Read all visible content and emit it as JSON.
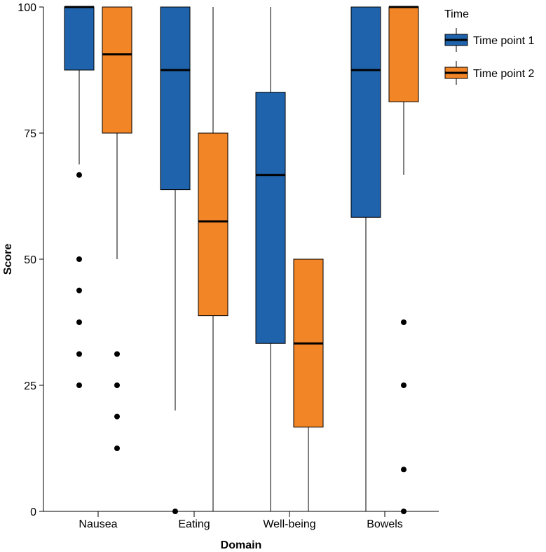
{
  "chart_data": {
    "type": "boxplot",
    "title": "",
    "xlabel": "Domain",
    "ylabel": "Score",
    "ylim": [
      0,
      100
    ],
    "yticks": [
      0,
      25,
      50,
      75,
      100
    ],
    "categories": [
      "Nausea",
      "Eating",
      "Well-being",
      "Bowels"
    ],
    "legend": {
      "title": "Time",
      "position": "top-right",
      "entries": [
        "Time point 1",
        "Time point 2"
      ]
    },
    "series": [
      {
        "name": "Time point 1",
        "color": "#1f63ad",
        "boxes": [
          {
            "category": "Nausea",
            "whisker_low": 68.8,
            "q1": 87.5,
            "median": 100,
            "q3": 100,
            "whisker_high": 100,
            "outliers": [
              66.7,
              50,
              43.8,
              37.5,
              31.2,
              25
            ]
          },
          {
            "category": "Eating",
            "whisker_low": 20,
            "q1": 63.8,
            "median": 87.5,
            "q3": 100,
            "whisker_high": 100,
            "outliers": [
              0
            ]
          },
          {
            "category": "Well-being",
            "whisker_low": 0,
            "q1": 33.3,
            "median": 66.7,
            "q3": 83.1,
            "whisker_high": 100,
            "outliers": []
          },
          {
            "category": "Bowels",
            "whisker_low": 0,
            "q1": 58.3,
            "median": 87.5,
            "q3": 100,
            "whisker_high": 100,
            "outliers": []
          }
        ]
      },
      {
        "name": "Time point 2",
        "color": "#f28526",
        "boxes": [
          {
            "category": "Nausea",
            "whisker_low": 50,
            "q1": 75,
            "median": 90.6,
            "q3": 100,
            "whisker_high": 100,
            "outliers": [
              31.2,
              25,
              18.8,
              12.5
            ]
          },
          {
            "category": "Eating",
            "whisker_low": 0,
            "q1": 38.8,
            "median": 57.5,
            "q3": 75,
            "whisker_high": 100,
            "outliers": []
          },
          {
            "category": "Well-being",
            "whisker_low": 0,
            "q1": 16.7,
            "median": 33.3,
            "q3": 50,
            "whisker_high": 50,
            "outliers": []
          },
          {
            "category": "Bowels",
            "whisker_low": 66.7,
            "q1": 81.2,
            "median": 100,
            "q3": 100,
            "whisker_high": 100,
            "outliers": [
              37.5,
              25,
              8.3,
              0
            ]
          }
        ]
      }
    ]
  }
}
